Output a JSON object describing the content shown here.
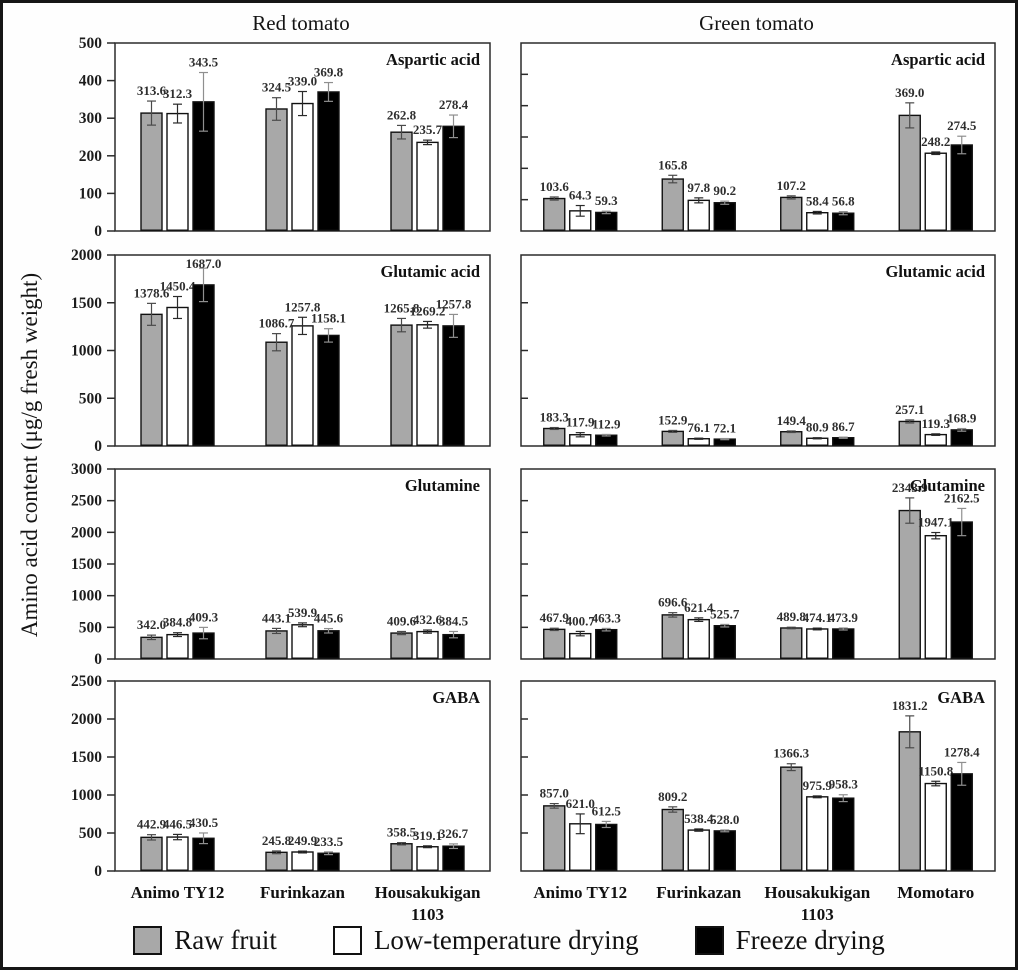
{
  "figure": {
    "ylabel": "Amino acid content (μg/g fresh weight)",
    "column_titles": [
      "Red tomato",
      "Green tomato"
    ],
    "legend": [
      {
        "label": "Raw fruit",
        "color": "#a8a8a8"
      },
      {
        "label": "Low-temperature drying",
        "color": "#ffffff"
      },
      {
        "label": "Freeze drying",
        "color": "#000000"
      }
    ]
  },
  "chart_data": [
    {
      "type": "bar",
      "panel": "red-aspartic-acid",
      "column": "Red tomato",
      "title": "Aspartic acid",
      "ylim": [
        0,
        500
      ],
      "ytick": 100,
      "ytick_labels": true,
      "xlabels": false,
      "categories": [
        "Animo TY12",
        "Furinkazan",
        "Housakukigan 1103"
      ],
      "series": [
        {
          "name": "Raw fruit",
          "values": [
            313.6,
            324.5,
            262.8
          ],
          "errors": [
            32,
            30,
            18
          ]
        },
        {
          "name": "Low-temperature drying",
          "values": [
            312.3,
            339.0,
            235.7
          ],
          "errors": [
            25,
            32,
            6
          ]
        },
        {
          "name": "Freeze drying",
          "values": [
            343.5,
            369.8,
            278.4
          ],
          "errors": [
            78,
            25,
            30
          ]
        }
      ]
    },
    {
      "type": "bar",
      "panel": "green-aspartic-acid",
      "column": "Green tomato",
      "title": "Aspartic acid",
      "ylim": [
        0,
        600
      ],
      "ytick": 100,
      "ytick_labels": false,
      "xlabels": false,
      "categories": [
        "Animo TY12",
        "Furinkazan",
        "Housakukigan 1103",
        "Momotaro"
      ],
      "series": [
        {
          "name": "Raw fruit",
          "values": [
            103.6,
            165.8,
            107.2,
            369.0
          ],
          "errors": [
            5,
            12,
            5,
            40
          ]
        },
        {
          "name": "Low-temperature drying",
          "values": [
            64.3,
            97.8,
            58.4,
            248.2
          ],
          "errors": [
            17,
            8,
            4,
            4
          ]
        },
        {
          "name": "Freeze drying",
          "values": [
            59.3,
            90.2,
            56.8,
            274.5
          ],
          "errors": [
            4,
            5,
            5,
            28
          ]
        }
      ]
    },
    {
      "type": "bar",
      "panel": "red-glutamic-acid",
      "column": "Red tomato",
      "title": "Glutamic acid",
      "ylim": [
        0,
        2000
      ],
      "ytick": 500,
      "ytick_labels": true,
      "xlabels": false,
      "categories": [
        "Animo TY12",
        "Furinkazan",
        "Housakukigan 1103"
      ],
      "series": [
        {
          "name": "Raw fruit",
          "values": [
            1378.6,
            1086.7,
            1265.8
          ],
          "errors": [
            115,
            90,
            70
          ]
        },
        {
          "name": "Low-temperature drying",
          "values": [
            1450.4,
            1257.8,
            1269.2
          ],
          "errors": [
            115,
            90,
            35
          ]
        },
        {
          "name": "Freeze drying",
          "values": [
            1687.0,
            1158.1,
            1257.8
          ],
          "errors": [
            175,
            70,
            120
          ]
        }
      ]
    },
    {
      "type": "bar",
      "panel": "green-glutamic-acid",
      "column": "Green tomato",
      "title": "Glutamic acid",
      "ylim": [
        0,
        2000
      ],
      "ytick": 500,
      "ytick_labels": false,
      "xlabels": false,
      "categories": [
        "Animo TY12",
        "Furinkazan",
        "Housakukigan 1103",
        "Momotaro"
      ],
      "series": [
        {
          "name": "Raw fruit",
          "values": [
            183.3,
            152.9,
            149.4,
            257.1
          ],
          "errors": [
            10,
            10,
            8,
            16
          ]
        },
        {
          "name": "Low-temperature drying",
          "values": [
            117.9,
            76.1,
            80.9,
            119.3
          ],
          "errors": [
            22,
            6,
            6,
            8
          ]
        },
        {
          "name": "Freeze drying",
          "values": [
            112.9,
            72.1,
            86.7,
            168.9
          ],
          "errors": [
            8,
            6,
            6,
            14
          ]
        }
      ]
    },
    {
      "type": "bar",
      "panel": "red-glutamine",
      "column": "Red tomato",
      "title": "Glutamine",
      "ylim": [
        0,
        3000
      ],
      "ytick": 500,
      "ytick_labels": true,
      "xlabels": false,
      "categories": [
        "Animo TY12",
        "Furinkazan",
        "Housakukigan 1103"
      ],
      "series": [
        {
          "name": "Raw fruit",
          "values": [
            342.0,
            443.1,
            409.6
          ],
          "errors": [
            35,
            40,
            25
          ]
        },
        {
          "name": "Low-temperature drying",
          "values": [
            384.8,
            539.9,
            432.6
          ],
          "errors": [
            30,
            30,
            25
          ]
        },
        {
          "name": "Freeze drying",
          "values": [
            409.3,
            445.6,
            384.5
          ],
          "errors": [
            90,
            35,
            50
          ]
        }
      ]
    },
    {
      "type": "bar",
      "panel": "green-glutamine",
      "column": "Green tomato",
      "title": "Glutamine",
      "ylim": [
        0,
        3000
      ],
      "ytick": 500,
      "ytick_labels": false,
      "xlabels": false,
      "categories": [
        "Animo TY12",
        "Furinkazan",
        "Housakukigan 1103",
        "Momotaro"
      ],
      "series": [
        {
          "name": "Raw fruit",
          "values": [
            467.9,
            696.6,
            489.8,
            2343.9
          ],
          "errors": [
            18,
            35,
            12,
            200
          ]
        },
        {
          "name": "Low-temperature drying",
          "values": [
            400.7,
            621.4,
            474.1,
            1947.1
          ],
          "errors": [
            35,
            28,
            14,
            50
          ]
        },
        {
          "name": "Freeze drying",
          "values": [
            463.3,
            525.7,
            473.9,
            2162.5
          ],
          "errors": [
            20,
            20,
            16,
            215
          ]
        }
      ]
    },
    {
      "type": "bar",
      "panel": "red-gaba",
      "column": "Red tomato",
      "title": "GABA",
      "ylim": [
        0,
        2500
      ],
      "ytick": 500,
      "ytick_labels": true,
      "xlabels": true,
      "categories": [
        "Animo TY12",
        "Furinkazan",
        "Housakukigan 1103"
      ],
      "series": [
        {
          "name": "Raw fruit",
          "values": [
            442.9,
            245.8,
            358.5
          ],
          "errors": [
            35,
            18,
            15
          ]
        },
        {
          "name": "Low-temperature drying",
          "values": [
            446.5,
            249.9,
            319.1
          ],
          "errors": [
            35,
            12,
            12
          ]
        },
        {
          "name": "Freeze drying",
          "values": [
            430.5,
            233.5,
            326.7
          ],
          "errors": [
            70,
            18,
            30
          ]
        }
      ]
    },
    {
      "type": "bar",
      "panel": "green-gaba",
      "column": "Green tomato",
      "title": "GABA",
      "ylim": [
        0,
        2500
      ],
      "ytick": 500,
      "ytick_labels": false,
      "xlabels": true,
      "categories": [
        "Animo TY12",
        "Furinkazan",
        "Housakukigan 1103",
        "Momotaro"
      ],
      "series": [
        {
          "name": "Raw fruit",
          "values": [
            857.0,
            809.2,
            1366.3,
            1831.2
          ],
          "errors": [
            30,
            35,
            45,
            210
          ]
        },
        {
          "name": "Low-temperature drying",
          "values": [
            621.0,
            538.4,
            975.9,
            1150.8
          ],
          "errors": [
            130,
            15,
            12,
            30
          ]
        },
        {
          "name": "Freeze drying",
          "values": [
            612.5,
            528.0,
            958.3,
            1278.4
          ],
          "errors": [
            40,
            12,
            45,
            150
          ]
        }
      ]
    }
  ]
}
